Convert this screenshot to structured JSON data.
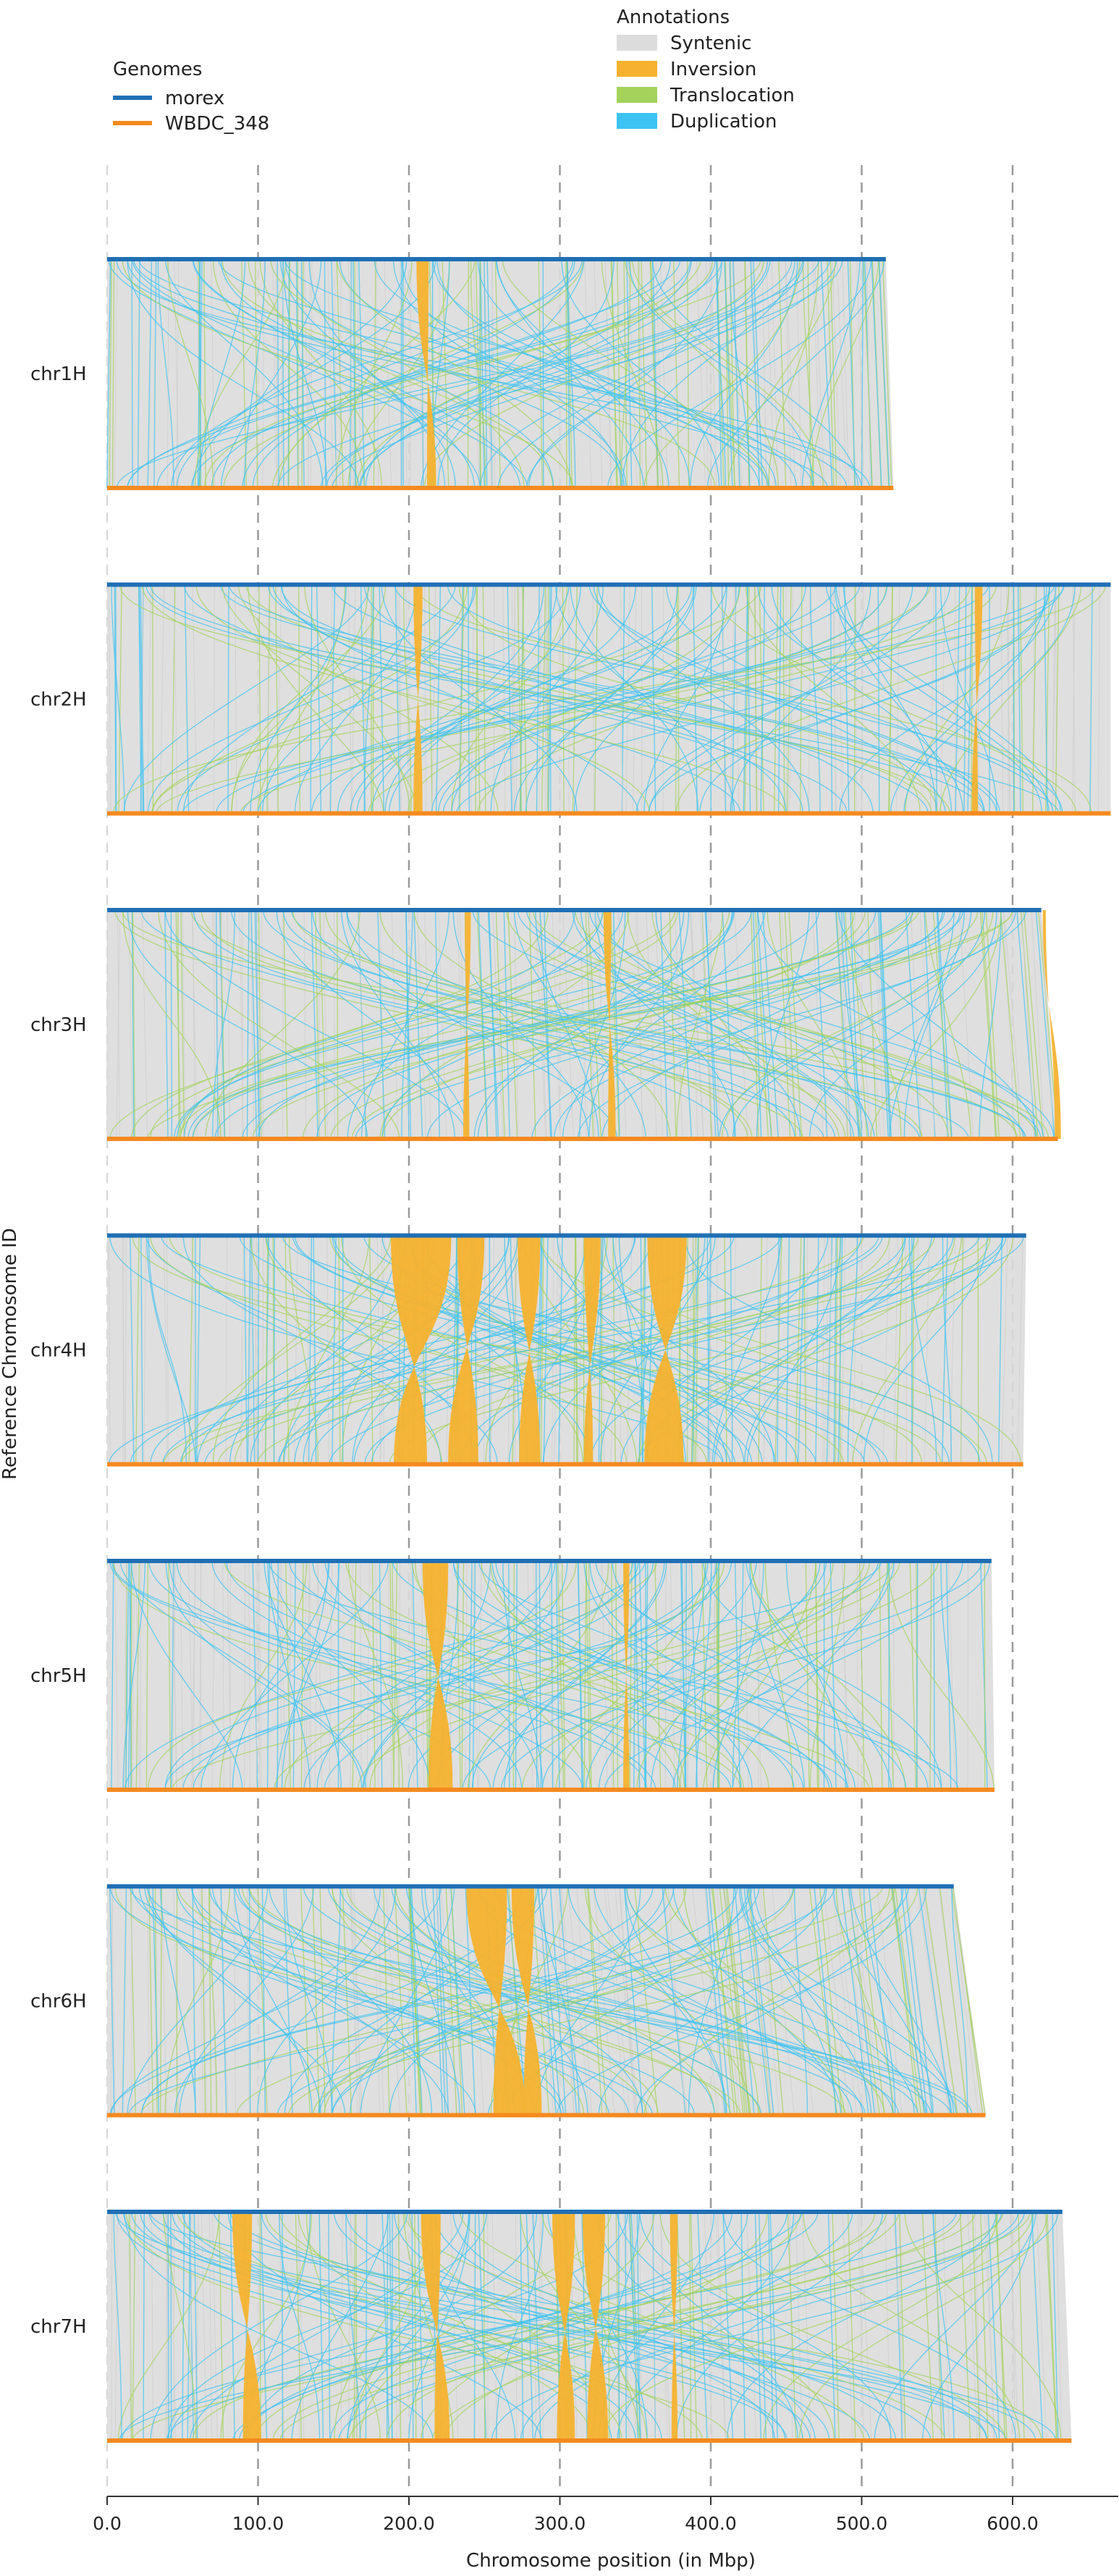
{
  "legends": {
    "genomes": {
      "title": "Genomes",
      "items": [
        {
          "label": "morex",
          "color": "#1f6fb5"
        },
        {
          "label": "WBDC_348",
          "color": "#f58a1f"
        }
      ]
    },
    "annotations": {
      "title": "Annotations",
      "items": [
        {
          "label": "Syntenic",
          "color": "#dcdcdc"
        },
        {
          "label": "Inversion",
          "color": "#f6b22f"
        },
        {
          "label": "Translocation",
          "color": "#a3d35b"
        },
        {
          "label": "Duplication",
          "color": "#3cc3f2"
        }
      ]
    }
  },
  "chart_data": {
    "type": "synteny",
    "xlabel": "Chromosome position (in Mbp)",
    "ylabel": "Reference Chromosome ID",
    "xlim": [
      0,
      665
    ],
    "xticks": [
      0,
      100,
      200,
      300,
      400,
      500,
      600
    ],
    "xtick_labels": [
      "0.0",
      "100.0",
      "200.0",
      "300.0",
      "400.0",
      "500.0",
      "600.0"
    ],
    "grid": "vertical dashed at ticks",
    "chromosomes": [
      {
        "id": "chr1H",
        "morex_length": 516,
        "wbdc_length": 521,
        "inversions": [
          {
            "ref": [
              205,
              213
            ],
            "qry": [
              212,
              218
            ]
          }
        ]
      },
      {
        "id": "chr2H",
        "morex_length": 665,
        "wbdc_length": 665,
        "inversions": [
          {
            "ref": [
              203,
              209
            ],
            "qry": [
              203,
              209
            ]
          },
          {
            "ref": [
              575,
              580
            ],
            "qry": [
              573,
              577
            ]
          }
        ]
      },
      {
        "id": "chr3H",
        "morex_length": 619,
        "wbdc_length": 630,
        "inversions": [
          {
            "ref": [
              237,
              241
            ],
            "qry": [
              236,
              240
            ]
          },
          {
            "ref": [
              329,
              334
            ],
            "qry": [
              332,
              337
            ]
          },
          {
            "ref": [
              620,
              622
            ],
            "qry": [
              628,
              632
            ]
          }
        ]
      },
      {
        "id": "chr4H",
        "morex_length": 609,
        "wbdc_length": 607,
        "inversions": [
          {
            "ref": [
              188,
              228
            ],
            "qry": [
              190,
              212
            ]
          },
          {
            "ref": [
              232,
              250
            ],
            "qry": [
              226,
              246
            ]
          },
          {
            "ref": [
              272,
              287
            ],
            "qry": [
              273,
              287
            ]
          },
          {
            "ref": [
              316,
              327
            ],
            "qry": [
              316,
              322
            ]
          },
          {
            "ref": [
              358,
              384
            ],
            "qry": [
              356,
              382
            ]
          }
        ]
      },
      {
        "id": "chr5H",
        "morex_length": 586,
        "wbdc_length": 588,
        "inversions": [
          {
            "ref": [
              209,
              226
            ],
            "qry": [
              213,
              229
            ]
          },
          {
            "ref": [
              342,
              346
            ],
            "qry": [
              342,
              346
            ]
          }
        ]
      },
      {
        "id": "chr6H",
        "morex_length": 561,
        "wbdc_length": 582,
        "inversions": [
          {
            "ref": [
              238,
              265
            ],
            "qry": [
              256,
              277
            ]
          },
          {
            "ref": [
              268,
              283
            ],
            "qry": [
              276,
              288
            ]
          }
        ]
      },
      {
        "id": "chr7H",
        "morex_length": 633,
        "wbdc_length": 639,
        "inversions": [
          {
            "ref": [
              83,
              96
            ],
            "qry": [
              90,
              102
            ]
          },
          {
            "ref": [
              208,
              221
            ],
            "qry": [
              217,
              227
            ]
          },
          {
            "ref": [
              295,
              310
            ],
            "qry": [
              298,
              310
            ]
          },
          {
            "ref": [
              315,
              330
            ],
            "qry": [
              318,
              332
            ]
          },
          {
            "ref": [
              373,
              378
            ],
            "qry": [
              374,
              378
            ]
          }
        ]
      }
    ]
  }
}
